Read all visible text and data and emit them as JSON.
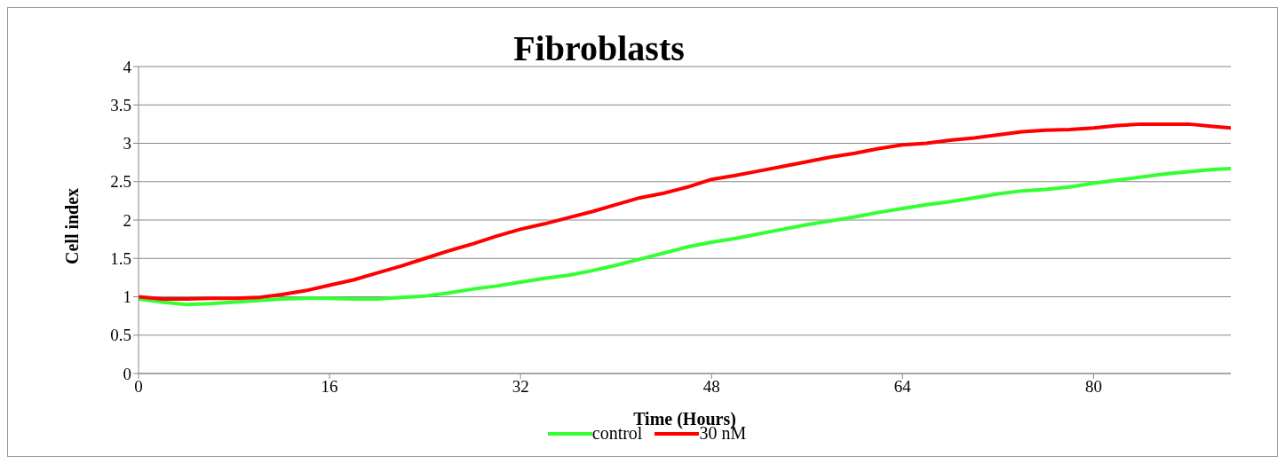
{
  "chart_data": {
    "type": "line",
    "title": "Fibroblasts",
    "xlabel": "Time (Hours)",
    "ylabel": "Cell index",
    "xlim": [
      0,
      91.5
    ],
    "xticks": [
      0,
      16,
      32,
      48,
      64,
      80
    ],
    "ylim": [
      0,
      4
    ],
    "yticks": [
      0,
      0.5,
      1,
      1.5,
      2,
      2.5,
      3,
      3.5,
      4
    ],
    "grid": "y",
    "legend": "bottom",
    "marker": "none",
    "line_style": "solid",
    "x": [
      0,
      2,
      4,
      6,
      8,
      10,
      12,
      14,
      16,
      18,
      20,
      22,
      24,
      26,
      28,
      30,
      32,
      34,
      36,
      38,
      40,
      42,
      44,
      46,
      48,
      50,
      52,
      54,
      56,
      58,
      60,
      62,
      64,
      66,
      68,
      70,
      72,
      74,
      76,
      78,
      80,
      82,
      84,
      86,
      88,
      90,
      91.5
    ],
    "series": [
      {
        "name": "control",
        "color": "#33ff33",
        "values": [
          0.97,
          0.93,
          0.9,
          0.91,
          0.93,
          0.95,
          0.97,
          0.98,
          0.98,
          0.97,
          0.97,
          0.99,
          1.01,
          1.05,
          1.1,
          1.14,
          1.19,
          1.24,
          1.28,
          1.34,
          1.41,
          1.49,
          1.57,
          1.65,
          1.71,
          1.76,
          1.82,
          1.88,
          1.94,
          1.99,
          2.04,
          2.1,
          2.15,
          2.2,
          2.24,
          2.29,
          2.34,
          2.38,
          2.4,
          2.43,
          2.48,
          2.52,
          2.56,
          2.6,
          2.63,
          2.66,
          2.67
        ]
      },
      {
        "name": "30 nM",
        "color": "#ff0000",
        "values": [
          1.0,
          0.97,
          0.97,
          0.98,
          0.98,
          0.99,
          1.03,
          1.08,
          1.15,
          1.22,
          1.31,
          1.4,
          1.5,
          1.6,
          1.69,
          1.79,
          1.88,
          1.95,
          2.03,
          2.11,
          2.2,
          2.29,
          2.35,
          2.43,
          2.53,
          2.58,
          2.64,
          2.7,
          2.76,
          2.82,
          2.87,
          2.93,
          2.98,
          3.0,
          3.04,
          3.07,
          3.11,
          3.15,
          3.17,
          3.18,
          3.2,
          3.23,
          3.25,
          3.25,
          3.25,
          3.22,
          3.2
        ]
      }
    ]
  }
}
